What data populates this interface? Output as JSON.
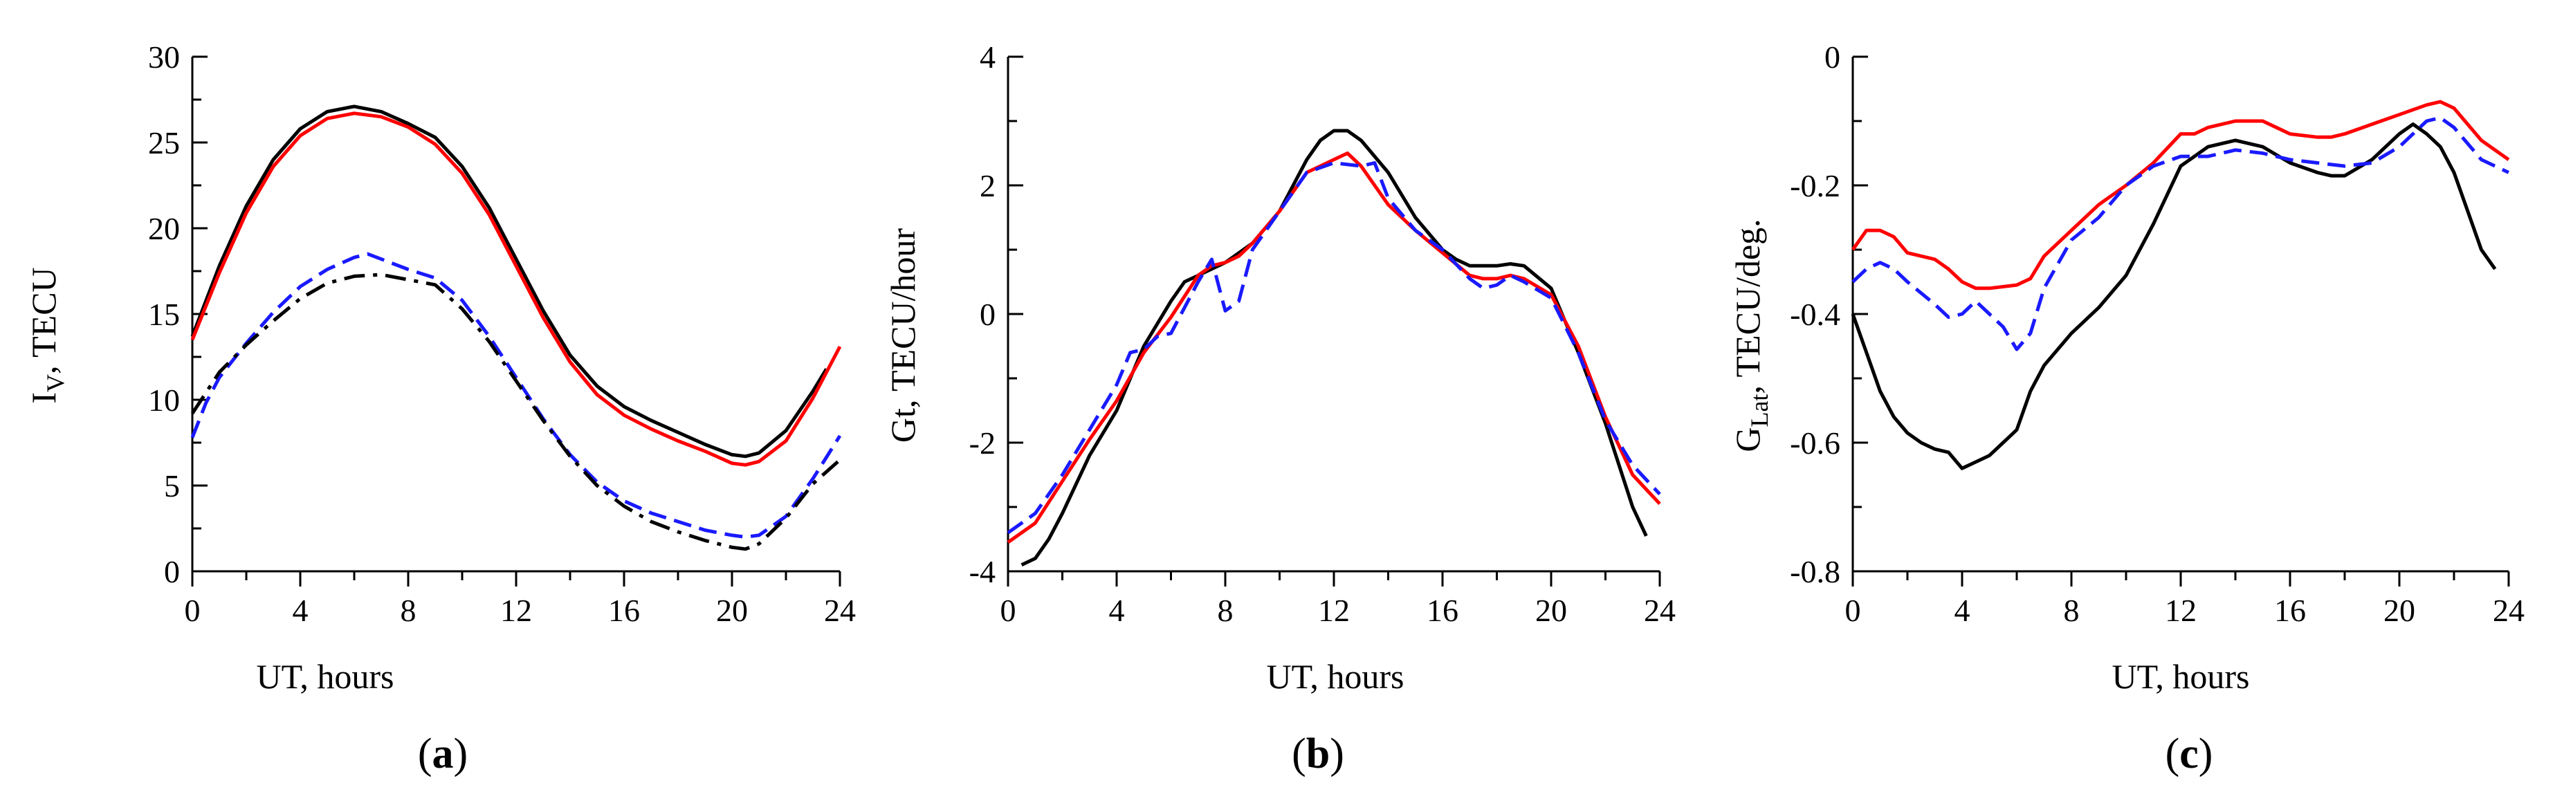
{
  "figure": {
    "panel_labels": [
      {
        "open": "(",
        "letter": "a",
        "close": ")"
      },
      {
        "open": "(",
        "letter": "b",
        "close": ")"
      },
      {
        "open": "(",
        "letter": "c",
        "close": ")"
      }
    ]
  },
  "colors": {
    "black": "#000000",
    "red": "#ff0000",
    "blue": "#1a1aff"
  },
  "chart_data": [
    {
      "type": "line",
      "id": "a",
      "xlabel": "UT, hours",
      "ylabel_main": "I",
      "ylabel_sub": "V",
      "ylabel_rest": ", TECU",
      "xlim": [
        0,
        24
      ],
      "ylim": [
        0,
        30
      ],
      "xticks": [
        0,
        4,
        8,
        12,
        16,
        20,
        24
      ],
      "xtick_labels": [
        "0",
        "4",
        "8",
        "12",
        "16",
        "20",
        "24"
      ],
      "yticks": [
        0,
        5,
        10,
        15,
        20,
        25,
        30
      ],
      "ytick_labels": [
        "0",
        "5",
        "10",
        "15",
        "20",
        "25",
        "30"
      ],
      "series": [
        {
          "name": "black-solid",
          "color": "#000000",
          "style": "solid",
          "x": [
            0,
            1,
            2,
            3,
            4,
            5,
            6,
            7,
            8,
            9,
            10,
            11,
            12,
            13,
            14,
            15,
            16,
            17,
            18,
            19,
            20,
            20.5,
            21,
            22,
            23,
            23.5
          ],
          "y": [
            13.7,
            17.8,
            21.3,
            24,
            25.8,
            26.8,
            27.1,
            26.8,
            26.1,
            25.3,
            23.6,
            21.2,
            18.2,
            15.2,
            12.6,
            10.8,
            9.6,
            8.8,
            8.1,
            7.4,
            6.8,
            6.7,
            6.9,
            8.2,
            10.5,
            11.8
          ]
        },
        {
          "name": "red-solid",
          "color": "#ff0000",
          "style": "solid",
          "x": [
            0,
            1,
            2,
            3,
            4,
            5,
            6,
            7,
            8,
            9,
            10,
            11,
            12,
            13,
            14,
            15,
            16,
            17,
            18,
            19,
            20,
            20.5,
            21,
            22,
            23,
            24
          ],
          "y": [
            13.5,
            17.4,
            20.9,
            23.6,
            25.4,
            26.4,
            26.7,
            26.5,
            25.9,
            24.9,
            23.2,
            20.8,
            17.8,
            14.8,
            12.2,
            10.3,
            9.1,
            8.3,
            7.6,
            7,
            6.3,
            6.2,
            6.4,
            7.6,
            10.1,
            13.1
          ]
        },
        {
          "name": "blue-dashed",
          "color": "#1a1aff",
          "style": "dashed",
          "x": [
            0,
            0.5,
            1,
            2,
            3,
            4,
            5,
            6,
            6.5,
            7,
            8,
            9,
            10,
            11,
            12,
            13,
            14,
            15,
            16,
            17,
            18,
            19,
            20,
            20.5,
            21,
            22,
            23,
            24
          ],
          "y": [
            7.8,
            9.8,
            11.3,
            13.3,
            15.1,
            16.6,
            17.6,
            18.3,
            18.5,
            18.2,
            17.6,
            17.1,
            15.8,
            13.7,
            11.3,
            8.9,
            6.8,
            5.2,
            4.1,
            3.4,
            2.9,
            2.4,
            2.1,
            2.0,
            2.1,
            3.2,
            5.4,
            7.9
          ]
        },
        {
          "name": "black-dashdot",
          "color": "#000000",
          "style": "dashdot",
          "x": [
            0,
            1,
            2,
            3,
            4,
            5,
            6,
            7,
            8,
            9,
            10,
            11,
            12,
            13,
            14,
            15,
            16,
            17,
            18,
            19,
            20,
            20.5,
            21,
            22,
            23,
            24
          ],
          "y": [
            9.2,
            11.6,
            13.2,
            14.6,
            15.9,
            16.8,
            17.2,
            17.3,
            17,
            16.7,
            15.3,
            13.4,
            11.1,
            8.8,
            6.7,
            5,
            3.8,
            2.9,
            2.3,
            1.8,
            1.4,
            1.3,
            1.6,
            3.1,
            5.1,
            6.5
          ]
        }
      ]
    },
    {
      "type": "line",
      "id": "b",
      "xlabel": "UT, hours",
      "ylabel_main": "Gt, TECU/hour",
      "ylabel_sub": "",
      "ylabel_rest": "",
      "xlim": [
        0,
        24
      ],
      "ylim": [
        -4,
        4
      ],
      "xticks": [
        0,
        4,
        8,
        12,
        16,
        20,
        24
      ],
      "xtick_labels": [
        "0",
        "4",
        "8",
        "12",
        "16",
        "20",
        "24"
      ],
      "yticks": [
        -4,
        -2,
        0,
        2,
        4
      ],
      "ytick_labels": [
        "-4",
        "-2",
        "0",
        "2",
        "4"
      ],
      "series": [
        {
          "name": "black-solid",
          "color": "#000000",
          "style": "solid",
          "x": [
            0.5,
            1,
            1.5,
            2,
            3,
            4,
            5,
            6,
            6.5,
            7,
            7.5,
            8,
            9,
            10,
            11,
            11.5,
            12,
            12.5,
            13,
            14,
            15,
            16,
            16.5,
            17,
            18,
            18.5,
            19,
            20,
            21,
            22,
            23,
            23.5
          ],
          "y": [
            -3.9,
            -3.8,
            -3.5,
            -3.1,
            -2.2,
            -1.5,
            -0.5,
            0.2,
            0.5,
            0.6,
            0.7,
            0.8,
            1.1,
            1.6,
            2.4,
            2.7,
            2.85,
            2.85,
            2.7,
            2.2,
            1.5,
            1.0,
            0.85,
            0.75,
            0.75,
            0.78,
            0.75,
            0.4,
            -0.6,
            -1.7,
            -3.0,
            -3.45
          ]
        },
        {
          "name": "red-solid",
          "color": "#ff0000",
          "style": "solid",
          "x": [
            0,
            1,
            2,
            3,
            4,
            5,
            6,
            7,
            7.5,
            8,
            8.5,
            9,
            10,
            11,
            12,
            12.5,
            13,
            14,
            15,
            16,
            17,
            17.5,
            18,
            18.5,
            19,
            20,
            21,
            22,
            23,
            24
          ],
          "y": [
            -3.55,
            -3.25,
            -2.6,
            -1.95,
            -1.35,
            -0.6,
            -0.05,
            0.6,
            0.75,
            0.8,
            0.9,
            1.1,
            1.6,
            2.2,
            2.4,
            2.5,
            2.3,
            1.7,
            1.3,
            0.95,
            0.6,
            0.55,
            0.55,
            0.6,
            0.55,
            0.3,
            -0.5,
            -1.6,
            -2.5,
            -2.95
          ]
        },
        {
          "name": "blue-dashed",
          "color": "#1a1aff",
          "style": "dashed",
          "x": [
            0,
            1,
            2,
            3,
            4,
            4.5,
            5,
            5.5,
            6,
            7,
            7.5,
            8,
            8.5,
            9,
            10,
            11,
            12,
            13,
            13.5,
            14,
            15,
            16,
            17,
            17.5,
            18,
            18.5,
            19,
            20,
            21,
            22,
            23,
            24
          ],
          "y": [
            -3.4,
            -3.1,
            -2.5,
            -1.8,
            -1.1,
            -0.6,
            -0.55,
            -0.35,
            -0.3,
            0.5,
            0.85,
            0.05,
            0.2,
            1.0,
            1.6,
            2.2,
            2.35,
            2.3,
            2.35,
            1.8,
            1.3,
            1.0,
            0.55,
            0.4,
            0.45,
            0.6,
            0.5,
            0.25,
            -0.6,
            -1.65,
            -2.35,
            -2.8
          ]
        }
      ]
    },
    {
      "type": "line",
      "id": "c",
      "xlabel": "UT, hours",
      "ylabel_main": "G",
      "ylabel_sub": "Lat",
      "ylabel_rest": ", TECU/deg.",
      "xlim": [
        0,
        24
      ],
      "ylim": [
        -0.8,
        0
      ],
      "xticks": [
        0,
        4,
        8,
        12,
        16,
        20,
        24
      ],
      "xtick_labels": [
        "0",
        "4",
        "8",
        "12",
        "16",
        "20",
        "24"
      ],
      "yticks": [
        -0.8,
        -0.6,
        -0.4,
        -0.2,
        0
      ],
      "ytick_labels": [
        "-0.8",
        "-0.6",
        "-0.4",
        "-0.2",
        "0"
      ],
      "series": [
        {
          "name": "black-solid",
          "color": "#000000",
          "style": "solid",
          "x": [
            0,
            0.5,
            1,
            1.5,
            2,
            2.5,
            3,
            3.5,
            4,
            4.5,
            5,
            5.5,
            6,
            6.5,
            7,
            8,
            9,
            10,
            11,
            12,
            13,
            14,
            15,
            16,
            17,
            17.5,
            18,
            19,
            20,
            20.5,
            21,
            21.5,
            22,
            22.5,
            23,
            23.5
          ],
          "y": [
            -0.4,
            -0.46,
            -0.52,
            -0.56,
            -0.585,
            -0.6,
            -0.61,
            -0.615,
            -0.64,
            -0.63,
            -0.62,
            -0.6,
            -0.58,
            -0.52,
            -0.48,
            -0.43,
            -0.39,
            -0.34,
            -0.26,
            -0.17,
            -0.14,
            -0.13,
            -0.14,
            -0.165,
            -0.18,
            -0.185,
            -0.185,
            -0.16,
            -0.12,
            -0.105,
            -0.12,
            -0.14,
            -0.18,
            -0.24,
            -0.3,
            -0.33
          ]
        },
        {
          "name": "red-solid",
          "color": "#ff0000",
          "style": "solid",
          "x": [
            0,
            0.5,
            1,
            1.5,
            2,
            3,
            3.5,
            4,
            4.5,
            5,
            6,
            6.5,
            7,
            8,
            9,
            10,
            11,
            12,
            12.5,
            13,
            14,
            15,
            16,
            17,
            17.5,
            18,
            19,
            20,
            21,
            21.5,
            22,
            23,
            24
          ],
          "y": [
            -0.3,
            -0.27,
            -0.27,
            -0.28,
            -0.305,
            -0.315,
            -0.33,
            -0.35,
            -0.36,
            -0.36,
            -0.355,
            -0.345,
            -0.31,
            -0.27,
            -0.23,
            -0.2,
            -0.165,
            -0.12,
            -0.12,
            -0.11,
            -0.1,
            -0.1,
            -0.12,
            -0.125,
            -0.125,
            -0.12,
            -0.105,
            -0.09,
            -0.075,
            -0.07,
            -0.08,
            -0.13,
            -0.16
          ]
        },
        {
          "name": "blue-dashed",
          "color": "#1a1aff",
          "style": "dashed",
          "x": [
            0,
            0.5,
            1,
            1.5,
            2,
            3,
            3.5,
            4,
            4.5,
            5,
            5.5,
            6,
            6.5,
            7,
            8,
            9,
            10,
            11,
            12,
            13,
            14,
            15,
            16,
            17,
            18,
            19,
            20,
            21,
            21.5,
            22,
            23,
            24
          ],
          "y": [
            -0.35,
            -0.33,
            -0.32,
            -0.33,
            -0.35,
            -0.385,
            -0.405,
            -0.4,
            -0.38,
            -0.4,
            -0.42,
            -0.455,
            -0.43,
            -0.36,
            -0.285,
            -0.25,
            -0.2,
            -0.17,
            -0.155,
            -0.155,
            -0.145,
            -0.15,
            -0.16,
            -0.165,
            -0.17,
            -0.165,
            -0.14,
            -0.1,
            -0.095,
            -0.11,
            -0.16,
            -0.18
          ]
        }
      ]
    }
  ]
}
